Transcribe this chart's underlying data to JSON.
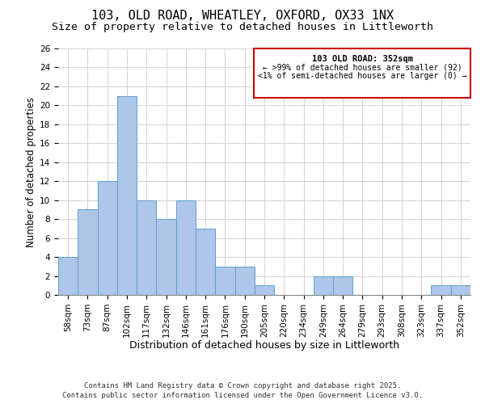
{
  "title": "103, OLD ROAD, WHEATLEY, OXFORD, OX33 1NX",
  "subtitle": "Size of property relative to detached houses in Littleworth",
  "xlabel": "Distribution of detached houses by size in Littleworth",
  "ylabel": "Number of detached properties",
  "bar_labels": [
    "58sqm",
    "73sqm",
    "87sqm",
    "102sqm",
    "117sqm",
    "132sqm",
    "146sqm",
    "161sqm",
    "176sqm",
    "190sqm",
    "205sqm",
    "220sqm",
    "234sqm",
    "249sqm",
    "264sqm",
    "279sqm",
    "293sqm",
    "308sqm",
    "323sqm",
    "337sqm",
    "352sqm"
  ],
  "bar_values": [
    4,
    9,
    12,
    21,
    10,
    8,
    10,
    7,
    3,
    3,
    1,
    0,
    0,
    2,
    2,
    0,
    0,
    0,
    0,
    1,
    1
  ],
  "bar_color": "#aec6e8",
  "bar_edge_color": "#5a9fd4",
  "ylim": [
    0,
    26
  ],
  "yticks": [
    0,
    2,
    4,
    6,
    8,
    10,
    12,
    14,
    16,
    18,
    20,
    22,
    24,
    26
  ],
  "annotation_title": "103 OLD ROAD: 352sqm",
  "annotation_line1": "← >99% of detached houses are smaller (92)",
  "annotation_line2": "<1% of semi-detached houses are larger (0) →",
  "annotation_box_edge_color": "#cc0000",
  "annotation_box_face_color": "#ffffff",
  "footer_line1": "Contains HM Land Registry data © Crown copyright and database right 2025.",
  "footer_line2": "Contains public sector information licensed under the Open Government Licence v3.0.",
  "background_color": "#ffffff",
  "grid_color": "#cccccc",
  "title_fontsize": 11,
  "subtitle_fontsize": 9.5,
  "xlabel_fontsize": 9,
  "ylabel_fontsize": 8.5,
  "tick_fontsize": 7.5,
  "footer_fontsize": 6.5
}
